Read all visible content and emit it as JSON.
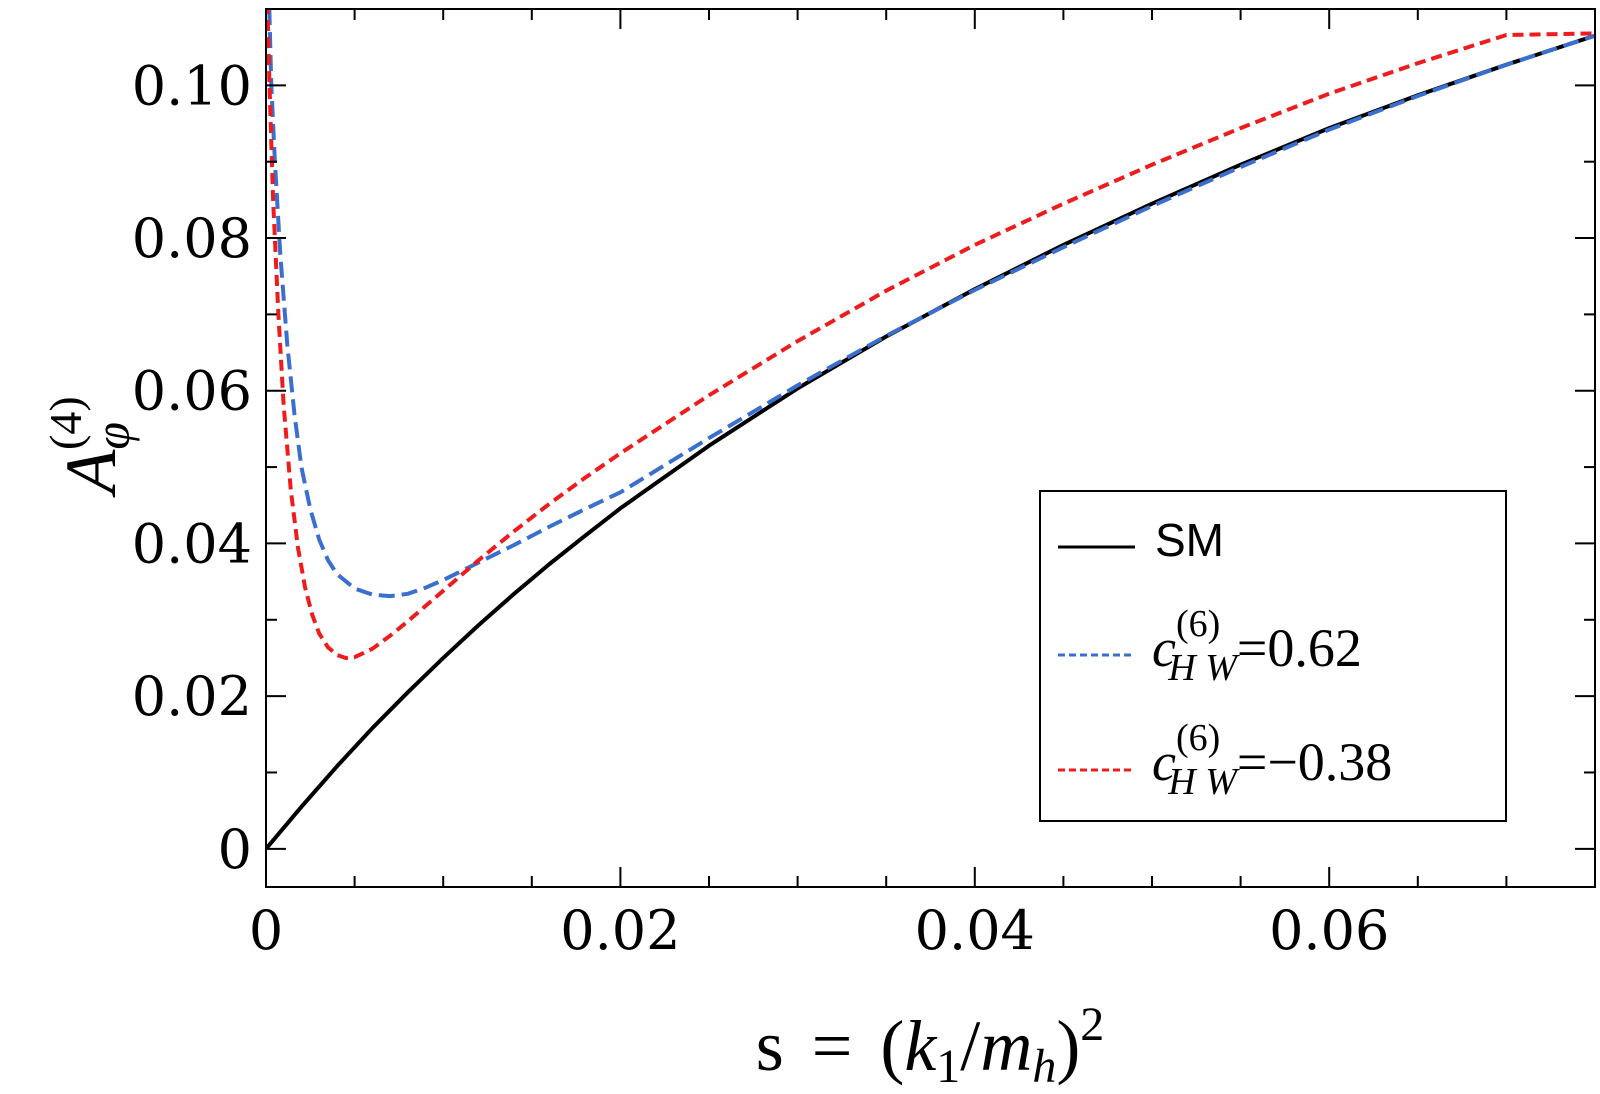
{
  "chart_data": {
    "type": "line",
    "xlabel": "s = (k1/mh)^2",
    "xlabel_parts": {
      "lhs": "s",
      "eq": "=",
      "open": "(",
      "k": "k",
      "k_sub": "1",
      "slash": "/",
      "m": "m",
      "m_sub": "h",
      "close": ")",
      "power": "2"
    },
    "ylabel": "A_phi^(4)",
    "ylabel_parts": {
      "main": "A",
      "sub": "φ",
      "sup": "(4)"
    },
    "xlim": [
      0,
      0.075
    ],
    "ylim": [
      -0.005,
      0.11
    ],
    "x_ticks": [
      {
        "value": 0,
        "label": "0"
      },
      {
        "value": 0.02,
        "label": "0.02"
      },
      {
        "value": 0.04,
        "label": "0.04"
      },
      {
        "value": 0.06,
        "label": "0.06"
      }
    ],
    "x_minor_step": 0.005,
    "y_ticks": [
      {
        "value": 0,
        "label": "0"
      },
      {
        "value": 0.02,
        "label": "0.02"
      },
      {
        "value": 0.04,
        "label": "0.04"
      },
      {
        "value": 0.06,
        "label": "0.06"
      },
      {
        "value": 0.08,
        "label": "0.08"
      },
      {
        "value": 0.1,
        "label": "0.10"
      }
    ],
    "y_minor_step": 0.01,
    "legend_position": "bottom-right",
    "series": [
      {
        "name": "SM",
        "label_text": "SM",
        "color": "#000000",
        "dash": "solid",
        "x": [
          0,
          0.002,
          0.004,
          0.006,
          0.008,
          0.01,
          0.012,
          0.014,
          0.016,
          0.018,
          0.02,
          0.025,
          0.03,
          0.035,
          0.04,
          0.045,
          0.05,
          0.055,
          0.06,
          0.065,
          0.07,
          0.075
        ],
        "y": [
          0,
          0.0055,
          0.0108,
          0.0158,
          0.0205,
          0.025,
          0.0293,
          0.0334,
          0.0373,
          0.041,
          0.0446,
          0.0528,
          0.0603,
          0.0671,
          0.0733,
          0.0791,
          0.0845,
          0.0896,
          0.0944,
          0.0987,
          0.1027,
          0.1065
        ]
      },
      {
        "name": "cHW(6)=0.62",
        "label_main": "c",
        "label_sup": "(6)",
        "label_sub": "H W",
        "label_value": "=0.62",
        "color": "#3a6fd0",
        "dash": "long",
        "x": [
          0.00015,
          0.0003,
          0.0005,
          0.0008,
          0.0012,
          0.0016,
          0.002,
          0.0025,
          0.003,
          0.0035,
          0.004,
          0.005,
          0.006,
          0.007,
          0.008,
          0.009,
          0.01,
          0.012,
          0.014,
          0.016,
          0.018,
          0.02,
          0.025,
          0.03,
          0.035,
          0.04,
          0.045,
          0.05,
          0.055,
          0.06,
          0.065,
          0.07,
          0.075
        ],
        "y": [
          0.113,
          0.1,
          0.09,
          0.078,
          0.066,
          0.057,
          0.05,
          0.0445,
          0.0405,
          0.0378,
          0.036,
          0.0341,
          0.0333,
          0.0331,
          0.0334,
          0.0342,
          0.0352,
          0.0375,
          0.0398,
          0.0422,
          0.0445,
          0.0467,
          0.0538,
          0.0607,
          0.0672,
          0.0732,
          0.0788,
          0.0842,
          0.0893,
          0.0942,
          0.0986,
          0.1027,
          0.1065
        ]
      },
      {
        "name": "cHW(6)=-0.38",
        "label_main": "c",
        "label_sup": "(6)",
        "label_sub": "H W",
        "label_value": "=−0.38",
        "color": "#ee1c1c",
        "dash": "short",
        "x": [
          5e-05,
          0.0002,
          0.0004,
          0.0007,
          0.001,
          0.0014,
          0.0018,
          0.0022,
          0.0026,
          0.003,
          0.0035,
          0.004,
          0.0045,
          0.005,
          0.006,
          0.007,
          0.008,
          0.009,
          0.01,
          0.012,
          0.014,
          0.016,
          0.018,
          0.02,
          0.025,
          0.03,
          0.035,
          0.04,
          0.045,
          0.05,
          0.055,
          0.06,
          0.065,
          0.07,
          0.075
        ],
        "y": [
          0.113,
          0.1,
          0.085,
          0.07,
          0.058,
          0.047,
          0.0395,
          0.0343,
          0.0307,
          0.0282,
          0.0264,
          0.0254,
          0.025,
          0.0251,
          0.0262,
          0.0279,
          0.0298,
          0.0318,
          0.0338,
          0.0378,
          0.0416,
          0.0452,
          0.0486,
          0.0518,
          0.0594,
          0.0665,
          0.0731,
          0.0791,
          0.0845,
          0.0896,
          0.0944,
          0.0989,
          0.1029,
          0.1066,
          0.1068
        ]
      }
    ]
  }
}
